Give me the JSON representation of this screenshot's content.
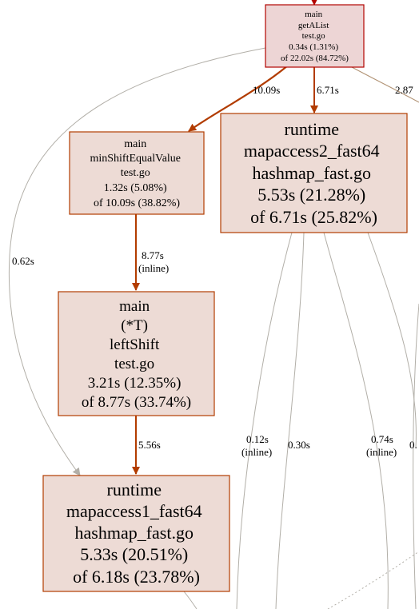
{
  "nodes": {
    "getalist": {
      "lines": [
        "main",
        "getAList",
        "test.go",
        "0.34s (1.31%)",
        "of 22.02s (84.72%)"
      ],
      "fill": "#edd5d5",
      "stroke": "#b20400"
    },
    "minshift": {
      "lines": [
        "main",
        "minShiftEqualValue",
        "test.go",
        "1.32s (5.08%)",
        "of 10.09s (38.82%)"
      ],
      "fill": "#eddbd5",
      "stroke": "#b23c00"
    },
    "mapaccess2": {
      "lines": [
        "runtime",
        "mapaccess2_fast64",
        "hashmap_fast.go",
        "5.53s (21.28%)",
        "of 6.71s (25.82%)"
      ],
      "fill": "#eddbd5",
      "stroke": "#b23c00"
    },
    "leftshift": {
      "lines": [
        "main",
        "(*T)",
        "leftShift",
        "test.go",
        "3.21s (12.35%)",
        "of 8.77s (33.74%)"
      ],
      "fill": "#eddbd5",
      "stroke": "#b23c00"
    },
    "mapaccess1": {
      "lines": [
        "runtime",
        "mapaccess1_fast64",
        "hashmap_fast.go",
        "5.33s (20.51%)",
        "of 6.18s (23.78%)"
      ],
      "fill": "#eddbd5",
      "stroke": "#b23c00"
    }
  },
  "edges": {
    "e_getalist_minshift": {
      "label": [
        "10.09s"
      ]
    },
    "e_getalist_mapaccess2": {
      "label": [
        "6.71s"
      ]
    },
    "e_getalist_offscreen": {
      "label": [
        "2.87"
      ]
    },
    "e_getalist_mapaccess1": {
      "label": [
        "0.62s"
      ]
    },
    "e_minshift_leftshift": {
      "label": [
        "8.77s",
        "(inline)"
      ]
    },
    "e_leftshift_mapaccess1": {
      "label": [
        "5.56s"
      ]
    },
    "e_offscreen_a": {
      "label": [
        "0.12s",
        "(inline)"
      ]
    },
    "e_offscreen_b": {
      "label": [
        "0.30s"
      ]
    },
    "e_offscreen_c": {
      "label": [
        "0.74s",
        "(inline)"
      ]
    },
    "e_offscreen_d": {
      "label": [
        "0."
      ]
    }
  },
  "colors": {
    "edge_strong": "#b23c00",
    "edge_top": "#b20400",
    "edge_weak": "#b2afa8",
    "edge_mid": "#b29476"
  }
}
